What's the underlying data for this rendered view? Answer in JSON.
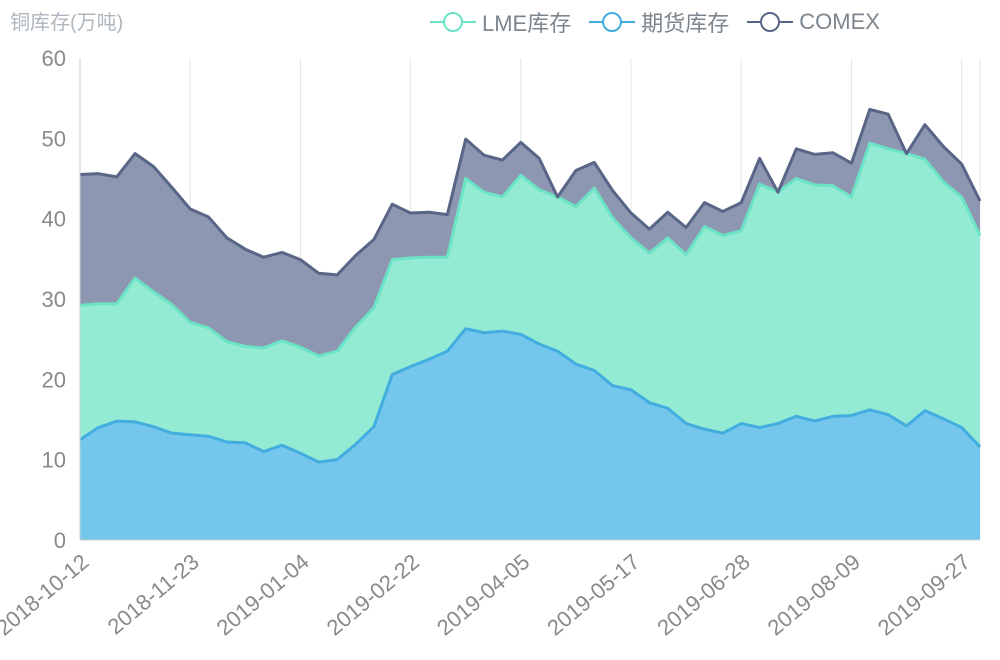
{
  "chart_data": {
    "type": "area",
    "title": "铜库存(万吨)",
    "ylim": [
      0,
      60
    ],
    "yticks": [
      0,
      10,
      20,
      30,
      40,
      50,
      60
    ],
    "x_tick_labels": [
      "2018-10-12",
      "2018-11-23",
      "2019-01-04",
      "2019-02-22",
      "2019-04-05",
      "2019-05-17",
      "2019-06-28",
      "2019-08-09",
      "2019-09-27"
    ],
    "x_tick_indices": [
      0,
      6,
      12,
      18,
      24,
      30,
      36,
      42,
      48
    ],
    "legend_position": "top-right",
    "stacked": true,
    "series": [
      {
        "name": "期货库存",
        "color": "#43ADE0",
        "fill": "#74C6EC",
        "values": [
          12.5,
          14,
          14.8,
          14.7,
          14.1,
          13.3,
          13.1,
          12.9,
          12.2,
          12.1,
          11,
          11.8,
          10.8,
          9.7,
          10,
          11.9,
          14.1,
          20.6,
          21.6,
          22.5,
          23.5,
          26.3,
          25.8,
          26,
          25.6,
          24.4,
          23.5,
          21.9,
          21.1,
          19.2,
          18.7,
          17.1,
          16.4,
          14.5,
          13.8,
          13.3,
          14.5,
          14,
          14.5,
          15.4,
          14.8,
          15.4,
          15.5,
          16.2,
          15.6,
          14.2,
          16.1,
          15.1,
          14,
          11.6
        ]
      },
      {
        "name": "LME库存",
        "color": "#6BE4C6",
        "fill": "#94EBD3",
        "values": [
          16.7,
          15.4,
          14.6,
          17.9,
          16.8,
          16,
          14,
          13.5,
          12.5,
          12,
          12.9,
          13,
          13.2,
          13.2,
          13.5,
          14.6,
          14.8,
          14.3,
          13.5,
          12.7,
          11.7,
          18.7,
          17.5,
          16.7,
          19.8,
          19.2,
          19.2,
          19.6,
          22.7,
          20.9,
          18.9,
          18.6,
          21.2,
          21,
          25.2,
          24.6,
          24,
          30.3,
          28.8,
          29.6,
          29.4,
          28.7,
          27.2,
          33.2,
          33.1,
          33.9,
          31.3,
          29.5,
          28.7,
          26.3
        ]
      },
      {
        "name": "COMEX",
        "color": "#586587",
        "fill": "#8E97B2",
        "values": [
          16.3,
          16.2,
          15.8,
          15.5,
          15.6,
          14.6,
          14.1,
          13.8,
          12.9,
          12.1,
          11.3,
          11,
          10.9,
          10.3,
          9.5,
          8.9,
          8.5,
          6.9,
          5.6,
          5.6,
          5.3,
          4.9,
          4.6,
          4.6,
          4.1,
          3.9,
          0,
          4.5,
          3.2,
          3.4,
          3.1,
          3,
          3.2,
          3.4,
          3,
          3,
          3.5,
          3.2,
          0,
          3.7,
          3.8,
          4.1,
          4.2,
          4.2,
          4.3,
          0,
          4.3,
          4.4,
          4.1,
          4.3
        ]
      }
    ]
  },
  "legend": {
    "items": [
      "LME库存",
      "期货库存",
      "COMEX"
    ]
  }
}
